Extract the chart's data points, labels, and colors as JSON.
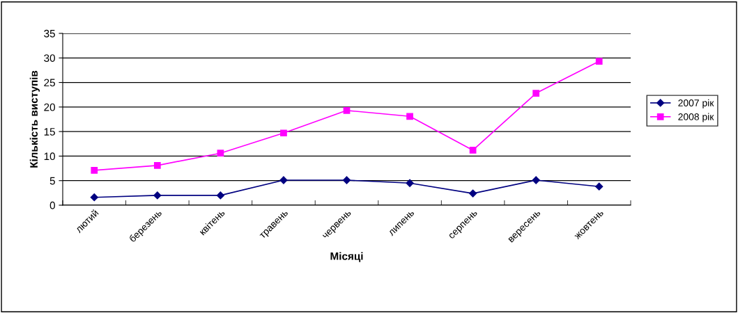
{
  "chart_data": {
    "type": "line",
    "xlabel": "Місяці",
    "ylabel": "Кількість виступів",
    "categories": [
      "лютий",
      "березень",
      "квітень",
      "травень",
      "червень",
      "липень",
      "серпень",
      "вересень",
      "жовтень"
    ],
    "series": [
      {
        "name": "2007 рік",
        "color": "#000080",
        "marker": "diamond",
        "values": [
          1.6,
          2.0,
          2.0,
          5.1,
          5.1,
          4.5,
          2.4,
          5.1,
          3.8
        ]
      },
      {
        "name": "2008 рік",
        "color": "#ff00ff",
        "marker": "square",
        "values": [
          7.1,
          8.1,
          10.6,
          14.7,
          19.3,
          18.1,
          11.2,
          22.8,
          29.3
        ]
      }
    ],
    "ylim": [
      0,
      35
    ],
    "yticks": [
      0,
      5,
      10,
      15,
      20,
      25,
      30,
      35
    ],
    "grid": "y",
    "legend": "right",
    "line_style": "solid"
  }
}
